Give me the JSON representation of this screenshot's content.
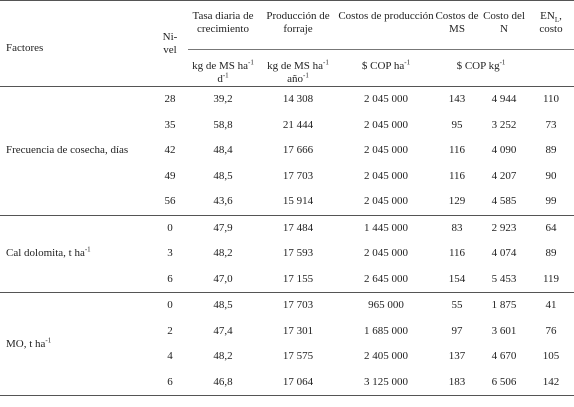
{
  "headers": {
    "factores": "Factores",
    "nivel": "Ni-vel",
    "tasa": "Tasa diaria de crecimiento",
    "produccion": "Producción de forraje",
    "costos_prod": "Costos de producción",
    "costos_ms": "Costos de MS",
    "costo_n": "Costo del N",
    "en_costo": "EN",
    "en_sub": "L",
    "en_tail": "costo"
  },
  "units": {
    "tasa_base": "kg de MS ha",
    "tasa_sup": "-1",
    "tasa_end": "d",
    "tasa_end_sup": "-1",
    "prod_base": "kg de MS ha",
    "prod_sup": "-1",
    "prod_end": "año",
    "prod_end_sup": "-1",
    "costos_base": "$ COP ha",
    "costos_sup": "-1",
    "cop_kg_base": "$ COP kg",
    "cop_kg_sup": "-1"
  },
  "groups": [
    {
      "label": "Frecuencia de cosecha, días",
      "label_sup": "",
      "rows": [
        {
          "nivel": "28",
          "tasa": "39,2",
          "prod": "14 308",
          "costos": "2 045 000",
          "cms": "143",
          "cn": "4 944",
          "en": "110"
        },
        {
          "nivel": "35",
          "tasa": "58,8",
          "prod": "21 444",
          "costos": "2 045 000",
          "cms": "95",
          "cn": "3 252",
          "en": "73"
        },
        {
          "nivel": "42",
          "tasa": "48,4",
          "prod": "17 666",
          "costos": "2 045 000",
          "cms": "116",
          "cn": "4 090",
          "en": "89"
        },
        {
          "nivel": "49",
          "tasa": "48,5",
          "prod": "17 703",
          "costos": "2 045 000",
          "cms": "116",
          "cn": "4 207",
          "en": "90"
        },
        {
          "nivel": "56",
          "tasa": "43,6",
          "prod": "15 914",
          "costos": "2 045 000",
          "cms": "129",
          "cn": "4 585",
          "en": "99"
        }
      ]
    },
    {
      "label": "Cal dolomita, t ha",
      "label_sup": "-1",
      "rows": [
        {
          "nivel": "0",
          "tasa": "47,9",
          "prod": "17 484",
          "costos": "1 445 000",
          "cms": "83",
          "cn": "2 923",
          "en": "64"
        },
        {
          "nivel": "3",
          "tasa": "48,2",
          "prod": "17 593",
          "costos": "2 045 000",
          "cms": "116",
          "cn": "4 074",
          "en": "89"
        },
        {
          "nivel": "6",
          "tasa": "47,0",
          "prod": "17 155",
          "costos": "2 645 000",
          "cms": "154",
          "cn": "5 453",
          "en": "119"
        }
      ]
    },
    {
      "label": "MO, t ha",
      "label_sup": "-1",
      "rows": [
        {
          "nivel": "0",
          "tasa": "48,5",
          "prod": "17 703",
          "costos": "965 000",
          "cms": "55",
          "cn": "1 875",
          "en": "41"
        },
        {
          "nivel": "2",
          "tasa": "47,4",
          "prod": "17 301",
          "costos": "1 685 000",
          "cms": "97",
          "cn": "3 601",
          "en": "76"
        },
        {
          "nivel": "4",
          "tasa": "48,2",
          "prod": "17 575",
          "costos": "2 405 000",
          "cms": "137",
          "cn": "4 670",
          "en": "105"
        },
        {
          "nivel": "6",
          "tasa": "46,8",
          "prod": "17 064",
          "costos": "3 125 000",
          "cms": "183",
          "cn": "6 506",
          "en": "142"
        }
      ]
    }
  ]
}
